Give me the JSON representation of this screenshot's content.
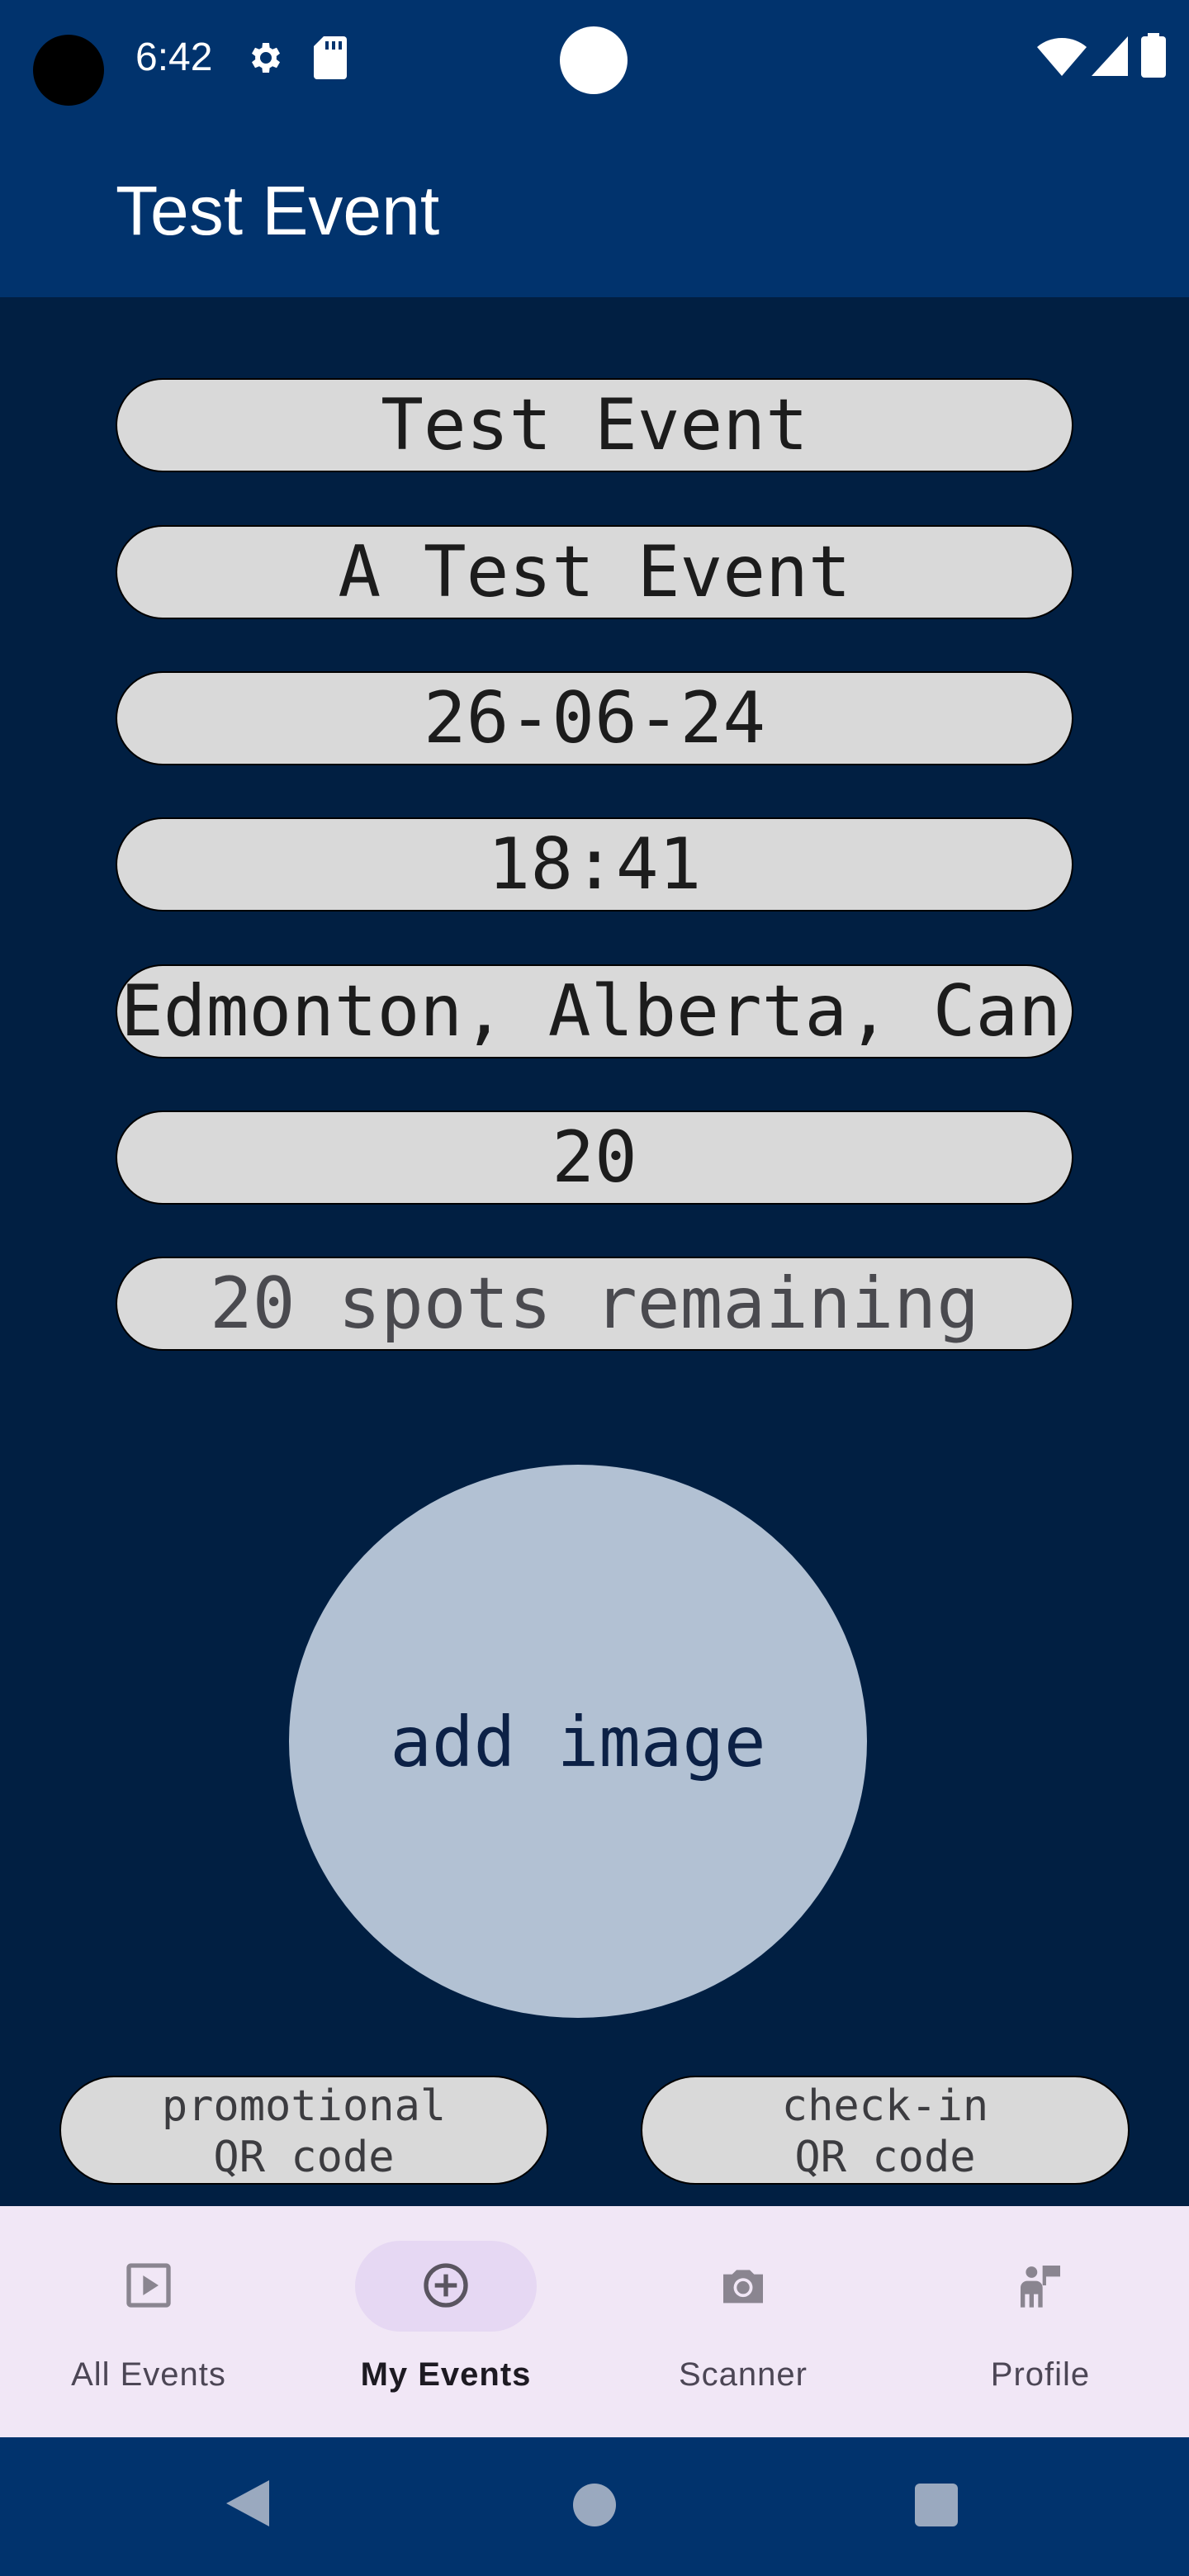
{
  "status_bar": {
    "time": "6:42"
  },
  "app_bar": {
    "title": "Test Event"
  },
  "event": {
    "name": "Test Event",
    "description": "A Test Event",
    "date": "26-06-24",
    "time": "18:41",
    "location": "Edmonton, Alberta, Can",
    "capacity": "20",
    "spots": "20 spots remaining"
  },
  "image_button": {
    "label": "add image"
  },
  "qr_buttons": {
    "promotional_line1": "promotional",
    "promotional_line2": "QR code",
    "checkin_line1": "check-in",
    "checkin_line2": "QR code"
  },
  "bottom_nav": {
    "items": [
      {
        "label": "All Events",
        "icon": "play-box-icon"
      },
      {
        "label": "My Events",
        "icon": "add-circle-icon",
        "active": true
      },
      {
        "label": "Scanner",
        "icon": "camera-icon"
      },
      {
        "label": "Profile",
        "icon": "profile-flag-icon"
      }
    ]
  },
  "colors": {
    "background": "#011f42",
    "bar": "#01336d",
    "field": "#d9d9d9",
    "image_circle": "#b2c1d3",
    "nav_background": "#f1e7f6"
  }
}
